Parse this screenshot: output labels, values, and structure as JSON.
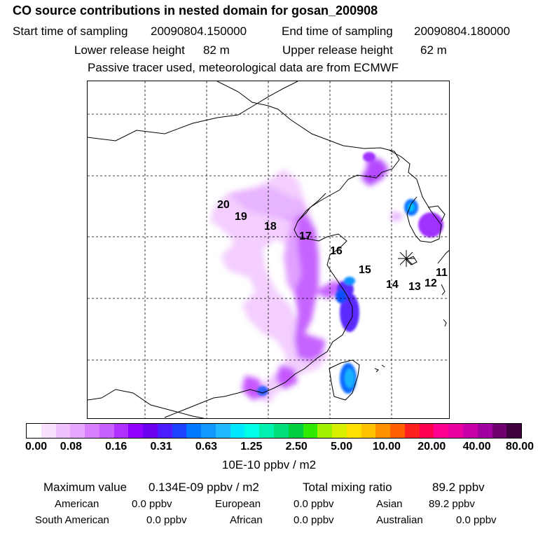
{
  "header": {
    "title": "CO  source contributions in nested domain for gosan_200908",
    "start_label": "Start time of sampling",
    "start_value": "20090804.150000",
    "end_label": "End time of sampling",
    "end_value": "20090804.180000",
    "lower_label": "Lower release height",
    "lower_value": "82 m",
    "upper_label": "Upper release height",
    "upper_value": "62 m",
    "subtitle": "Passive tracer used, meteorological data are from ECMWF"
  },
  "map": {
    "trajectory_labels": [
      "20",
      "19",
      "18",
      "17",
      "16",
      "15",
      "14",
      "13",
      "12",
      "11"
    ],
    "receptor_icon": "star-icon"
  },
  "colorbar": {
    "colors": [
      "#ffffff",
      "#f8e0ff",
      "#f0c0ff",
      "#e8a8ff",
      "#d880ff",
      "#c860ff",
      "#b030ff",
      "#9000ff",
      "#6a00f0",
      "#4b1cff",
      "#1e40ff",
      "#0078ff",
      "#1098ff",
      "#20b8ff",
      "#00e8ff",
      "#00ffe6",
      "#00f0b0",
      "#00e07a",
      "#00d040",
      "#30e800",
      "#a0f000",
      "#d8f000",
      "#ffe000",
      "#ffc000",
      "#ff9000",
      "#ff6000",
      "#ff2020",
      "#ff0050",
      "#ff0090",
      "#e800a0",
      "#c800a8",
      "#a000a0",
      "#700070",
      "#400040"
    ],
    "tick_labels": [
      "0.00",
      "0.08",
      "0.16",
      "0.31",
      "0.63",
      "1.25",
      "2.50",
      "5.00",
      "10.00",
      "20.00",
      "40.00",
      "80.00"
    ],
    "units": "10E-10 ppbv / m2"
  },
  "stats": {
    "max_label": "Maximum value",
    "max_value": "0.134E-09 ppbv / m2",
    "total_label": "Total mixing ratio",
    "total_value": "89.2 ppbv",
    "regions": [
      {
        "name": "American",
        "value": "0.0 ppbv"
      },
      {
        "name": "European",
        "value": "0.0 ppbv"
      },
      {
        "name": "Asian",
        "value": "89.2 ppbv"
      },
      {
        "name": "South American",
        "value": "0.0 ppbv"
      },
      {
        "name": "African",
        "value": "0.0 ppbv"
      },
      {
        "name": "Australian",
        "value": "0.0 ppbv"
      }
    ]
  }
}
